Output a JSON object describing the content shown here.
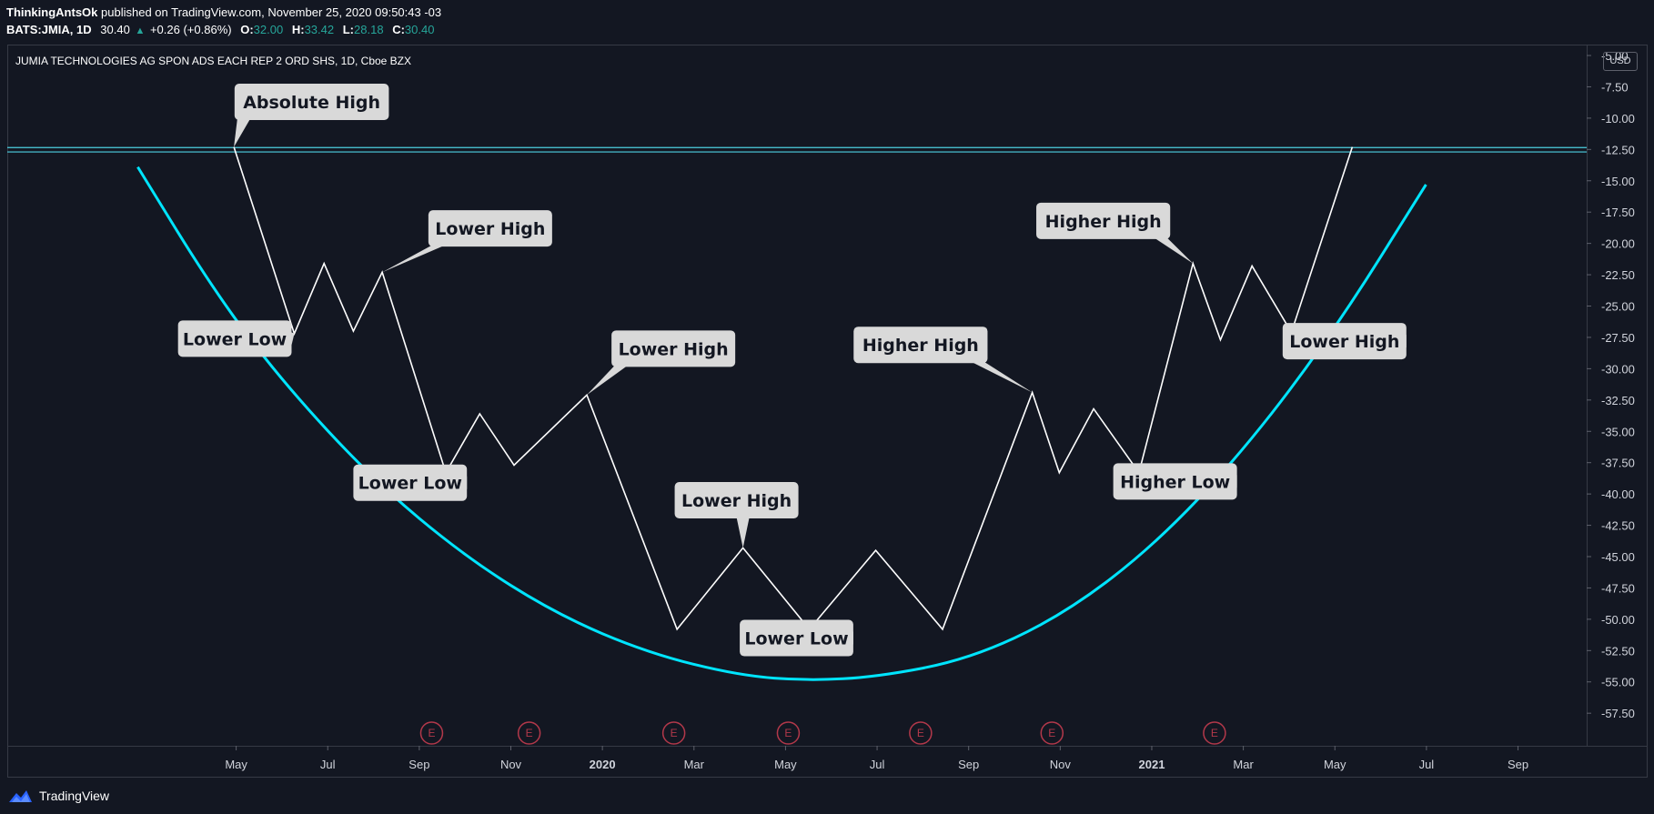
{
  "header": {
    "author": "ThinkingAntsOk",
    "published_text": "published on TradingView.com, November 25, 2020 09:50:43 -03",
    "symbol_line": "BATS:JMIA, 1D",
    "last": "30.40",
    "change": "+0.26 (+0.86%)",
    "o_label": "O:",
    "o_val": "32.00",
    "h_label": "H:",
    "h_val": "33.42",
    "l_label": "L:",
    "l_val": "28.18",
    "c_label": "C:",
    "c_val": "30.40"
  },
  "chart_title": "JUMIA TECHNOLOGIES AG SPON ADS EACH REP 2 ORD SHS, 1D, Cboe BZX",
  "currency": "USD",
  "brand": "TradingView",
  "colors": {
    "background": "#131722",
    "price_line": "#ffffff",
    "curve": "#00e5ff",
    "horizontal_lines": "#4dd0e1",
    "callout_bg": "#d9d9d9",
    "event_marker": "#b2384a",
    "up": "#26a69a"
  },
  "chart_data": {
    "type": "line",
    "yaxis_ticks": [
      "-5.00",
      "-7.50",
      "-10.00",
      "-12.50",
      "-15.00",
      "-17.50",
      "-20.00",
      "-22.50",
      "-25.00",
      "-27.50",
      "-30.00",
      "-32.50",
      "-35.00",
      "-37.50",
      "-40.00",
      "-42.50",
      "-45.00",
      "-47.50",
      "-50.00",
      "-52.50",
      "-55.00",
      "-57.50"
    ],
    "ylim": [
      -60.1,
      -4.2
    ],
    "xaxis_ticks": [
      {
        "label": "May",
        "t": 5.0
      },
      {
        "label": "Jul",
        "t": 7.0
      },
      {
        "label": "Sep",
        "t": 9.0
      },
      {
        "label": "Nov",
        "t": 11.0
      },
      {
        "label": "2020",
        "t": 13.0,
        "bold": true
      },
      {
        "label": "Mar",
        "t": 15.0
      },
      {
        "label": "May",
        "t": 17.0
      },
      {
        "label": "Jul",
        "t": 19.0
      },
      {
        "label": "Sep",
        "t": 21.0
      },
      {
        "label": "Nov",
        "t": 23.0
      },
      {
        "label": "2021",
        "t": 25.0,
        "bold": true
      },
      {
        "label": "Mar",
        "t": 27.0
      },
      {
        "label": "May",
        "t": 29.0
      },
      {
        "label": "Jul",
        "t": 31.0
      },
      {
        "label": "Sep",
        "t": 33.0
      }
    ],
    "xlim": [
      0,
      34.5
    ],
    "series": [
      {
        "points": [
          [
            4.95,
            -12.3
          ],
          [
            6.27,
            -27.2
          ],
          [
            6.92,
            -21.6
          ],
          [
            7.56,
            -27.0
          ],
          [
            8.19,
            -22.3
          ],
          [
            9.58,
            -38.3
          ],
          [
            10.32,
            -33.6
          ],
          [
            11.07,
            -37.7
          ],
          [
            12.66,
            -32.1
          ],
          [
            14.63,
            -50.8
          ],
          [
            16.07,
            -44.3
          ],
          [
            17.52,
            -50.8
          ],
          [
            18.97,
            -44.5
          ],
          [
            20.43,
            -50.8
          ],
          [
            22.39,
            -31.9
          ],
          [
            22.98,
            -38.3
          ],
          [
            23.73,
            -33.2
          ],
          [
            24.72,
            -38.3
          ],
          [
            25.9,
            -21.6
          ],
          [
            26.5,
            -27.7
          ],
          [
            27.19,
            -21.8
          ],
          [
            28.05,
            -27.1
          ],
          [
            29.38,
            -12.3
          ]
        ]
      },
      {
        "curve": [
          [
            2.85,
            -13.9
          ],
          [
            4.5,
            -23.7
          ],
          [
            6.0,
            -31.0
          ],
          [
            8.0,
            -38.9
          ],
          [
            10.0,
            -45.0
          ],
          [
            12.0,
            -49.6
          ],
          [
            14.0,
            -52.7
          ],
          [
            16.0,
            -54.5
          ],
          [
            17.5,
            -54.9
          ],
          [
            19.0,
            -54.6
          ],
          [
            21.0,
            -53.2
          ],
          [
            23.0,
            -49.8
          ],
          [
            25.0,
            -44.3
          ],
          [
            27.0,
            -36.6
          ],
          [
            29.0,
            -26.9
          ],
          [
            30.99,
            -15.3
          ]
        ]
      }
    ],
    "horizontal_levels": [
      -12.35,
      -12.7
    ],
    "annotations": [
      {
        "text": "Absolute High",
        "t": 6.65,
        "y": -8.7,
        "anchor": [
          4.95,
          -12.3
        ]
      },
      {
        "text": "Lower High",
        "t": 10.55,
        "y": -18.8,
        "anchor": [
          8.19,
          -22.3
        ]
      },
      {
        "text": "Lower Low",
        "t": 4.97,
        "y": -27.6,
        "anchor": [
          6.27,
          -27.2
        ]
      },
      {
        "text": "Lower Low",
        "t": 8.8,
        "y": -39.1,
        "anchor": [
          9.58,
          -38.3
        ]
      },
      {
        "text": "Lower High",
        "t": 14.55,
        "y": -28.4,
        "anchor": [
          12.66,
          -32.1
        ]
      },
      {
        "text": "Lower High",
        "t": 15.93,
        "y": -40.5,
        "anchor": [
          16.07,
          -44.3
        ]
      },
      {
        "text": "Lower Low",
        "t": 17.24,
        "y": -51.5,
        "anchor": [
          17.52,
          -50.8
        ]
      },
      {
        "text": "Higher High",
        "t": 19.95,
        "y": -28.1,
        "anchor": [
          22.39,
          -31.9
        ]
      },
      {
        "text": "Higher High",
        "t": 23.94,
        "y": -18.2,
        "anchor": [
          25.9,
          -21.6
        ]
      },
      {
        "text": "Higher Low",
        "t": 25.51,
        "y": -39.0,
        "anchor": [
          24.72,
          -38.3
        ]
      },
      {
        "text": "Lower High",
        "t": 29.21,
        "y": -27.8,
        "anchor": [
          28.05,
          -27.1
        ]
      }
    ],
    "event_markers": [
      {
        "label": "E",
        "t": 9.27
      },
      {
        "label": "E",
        "t": 11.4
      },
      {
        "label": "E",
        "t": 14.56
      },
      {
        "label": "E",
        "t": 17.06
      },
      {
        "label": "E",
        "t": 19.95
      },
      {
        "label": "E",
        "t": 22.82
      },
      {
        "label": "E",
        "t": 26.37
      }
    ]
  }
}
